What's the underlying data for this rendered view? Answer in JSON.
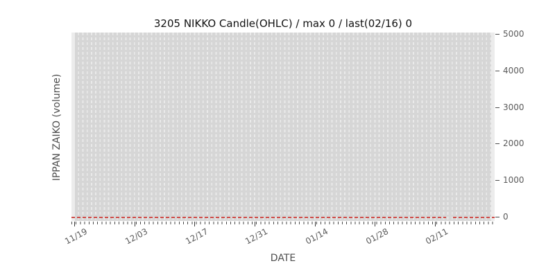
{
  "chart_data": {
    "type": "line",
    "title": "3205 NIKKO Candle(OHLC) / max 0 / last(02/16) 0",
    "xlabel": "DATE",
    "ylabel": "IPPAN ZAIKO (volume)",
    "x_tick_labels": [
      "11/19",
      "12/03",
      "12/17",
      "12/31",
      "01/14",
      "01/28",
      "02/11"
    ],
    "x_minor_tick_interval": "daily",
    "y_tick_labels": [
      "0",
      "1000",
      "2000",
      "3000",
      "4000",
      "5000"
    ],
    "y_tick_values": [
      0,
      1000,
      2000,
      3000,
      4000,
      5000
    ],
    "y_axis_side": "right",
    "ylim": [
      -120,
      5160
    ],
    "grid": {
      "vertical_dashed": true,
      "horizontal": false
    },
    "legend": "none",
    "series": [
      {
        "name": "IPPAN ZAIKO (volume)",
        "style": "dashed",
        "color": "#cf4e4a",
        "constant_value": 0,
        "max": 0,
        "last_date": "02/16",
        "last_value": 0,
        "segments_fraction": [
          [
            0.0,
            0.885
          ],
          [
            0.902,
            1.0
          ]
        ]
      }
    ]
  },
  "colors": {
    "figure_background": "#ffffff",
    "plot_background": "#d6d6d6",
    "gridline": "#eaeaea",
    "edge_strip": "#ececec",
    "zero_line": "#cf4e4a",
    "tick_label": "#595959",
    "axis_label": "#4d4d4d",
    "title": "#111111"
  }
}
